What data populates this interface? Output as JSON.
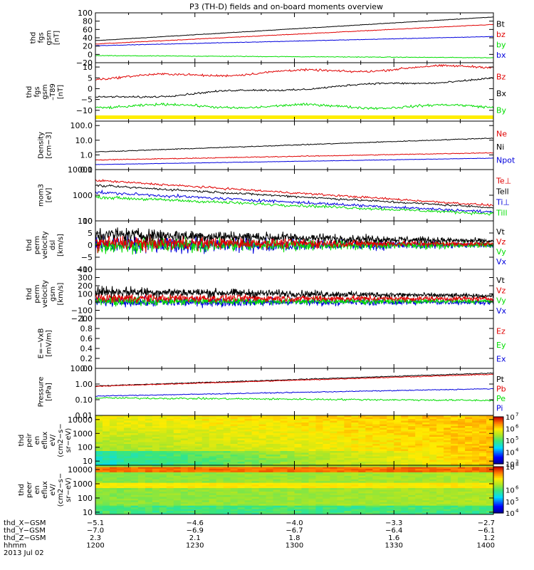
{
  "title": "P3 (TH-D) fields and on-board moments overview",
  "colors": {
    "black": "#000000",
    "red": "#e00000",
    "green": "#00dd00",
    "blue": "#0000dd",
    "yellow": "#ffee00"
  },
  "chart_data": {
    "type": "line",
    "x_time_range_hhmm": [
      "1200",
      "1400"
    ],
    "panels": [
      {
        "id": "fgs-gsm",
        "ylabel_lines": [
          "thd",
          "fgs",
          "gsm",
          "[nT]"
        ],
        "scale": "linear",
        "ylim": [
          -20,
          100
        ],
        "yticks": [
          {
            "v": 100,
            "t": "100"
          },
          {
            "v": 80,
            "t": "80"
          },
          {
            "v": 60,
            "t": "60"
          },
          {
            "v": 40,
            "t": "40"
          },
          {
            "v": 20,
            "t": "20"
          },
          {
            "v": 0,
            "t": "0"
          },
          {
            "v": -20,
            "t": "−20"
          }
        ],
        "series": [
          {
            "name": "Bt",
            "color": "black",
            "start": 33,
            "end": 90,
            "noise": 0.4
          },
          {
            "name": "bz",
            "color": "red",
            "start": 25,
            "end": 72,
            "noise": 0.5
          },
          {
            "name": "by",
            "color": "green",
            "start": -3,
            "end": -8,
            "noise": 0.6
          },
          {
            "name": "bx",
            "color": "blue",
            "start": 21,
            "end": 43,
            "noise": 0.4
          }
        ],
        "legend": [
          "Bt",
          "bz",
          "by",
          "bx"
        ]
      },
      {
        "id": "fgs-dbz",
        "ylabel_lines": [
          "thd",
          "fgs",
          "gsm",
          "–T89",
          "[nT]"
        ],
        "scale": "linear",
        "ylim": [
          -15,
          12
        ],
        "yticks": [
          {
            "v": 10,
            "t": "10"
          },
          {
            "v": 5,
            "t": "5"
          },
          {
            "v": 0,
            "t": "0"
          },
          {
            "v": -5,
            "t": "−5"
          },
          {
            "v": -10,
            "t": "−10"
          }
        ],
        "series": [
          {
            "name": "Bz",
            "color": "red",
            "start": 5,
            "end": 10.5,
            "noise": 0.35,
            "wob": 0.8
          },
          {
            "name": "Bx",
            "color": "black",
            "start": -4.5,
            "end": 4.5,
            "noise": 0.3,
            "wob": 0.6
          },
          {
            "name": "By",
            "color": "green",
            "start": -8,
            "end": -8.3,
            "noise": 0.4,
            "wob": 0.8
          }
        ],
        "legend": [
          "Bz",
          "Bx",
          "By"
        ],
        "yellow_bar": true
      },
      {
        "id": "density",
        "ylabel_lines": [
          "Density",
          "[cm−3]"
        ],
        "scale": "log",
        "ylim": [
          0.1,
          200
        ],
        "yticks": [
          {
            "v": 100,
            "t": "100.0"
          },
          {
            "v": 10,
            "t": "10.0"
          },
          {
            "v": 1,
            "t": "1.0"
          },
          {
            "v": 0.1,
            "t": "0.1"
          }
        ],
        "series": [
          {
            "name": "Ne",
            "color": "red",
            "start": 0.45,
            "end": 1.4,
            "noise": 0.02
          },
          {
            "name": "Ni",
            "color": "black",
            "start": 1.6,
            "end": 14,
            "noise": 0.02
          },
          {
            "name": "Npot",
            "color": "blue",
            "start": 0.22,
            "end": 0.6,
            "noise": 0.01
          }
        ],
        "legend": [
          "Ne",
          "Ni",
          "Npot"
        ]
      },
      {
        "id": "temperature",
        "ylabel_lines": [
          "mom3",
          "[eV]"
        ],
        "scale": "log",
        "ylim": [
          100,
          10000
        ],
        "yticks": [
          {
            "v": 10000,
            "t": "10000"
          },
          {
            "v": 1000,
            "t": "1000"
          },
          {
            "v": 100,
            "t": "100"
          }
        ],
        "series": [
          {
            "name": "Te⊥",
            "color": "red",
            "start": 3800,
            "end": 400,
            "noise": 0.03
          },
          {
            "name": "Tell",
            "color": "black",
            "start": 2400,
            "end": 330,
            "noise": 0.03
          },
          {
            "name": "Ti⊥",
            "color": "blue",
            "start": 1300,
            "end": 220,
            "noise": 0.04
          },
          {
            "name": "Till",
            "color": "green",
            "start": 850,
            "end": 190,
            "noise": 0.04
          }
        ],
        "legend": [
          "Te⊥",
          "Tell",
          "Ti⊥",
          "Till"
        ]
      },
      {
        "id": "perm-velocity-dsl",
        "ylabel_lines": [
          "thd",
          "perm",
          "velocity",
          "dsl",
          "[km/s]"
        ],
        "scale": "linear",
        "ylim": [
          -10,
          10
        ],
        "yticks": [
          {
            "v": 10,
            "t": "10"
          },
          {
            "v": 5,
            "t": "5"
          },
          {
            "v": 0,
            "t": "0"
          },
          {
            "v": -5,
            "t": "−5"
          },
          {
            "v": -10,
            "t": "−10"
          }
        ],
        "series": [
          {
            "name": "Vx",
            "color": "blue",
            "start": 0,
            "end": 0,
            "noise": 2.6,
            "noiseEnd": 0.8
          },
          {
            "name": "Vy",
            "color": "green",
            "start": 0,
            "end": 0,
            "noise": 2.4,
            "noiseEnd": 0.8
          },
          {
            "name": "Vz",
            "color": "red",
            "start": 1,
            "end": 0.5,
            "noise": 2.2,
            "noiseEnd": 0.6
          },
          {
            "name": "Vt",
            "color": "black",
            "start": 4.5,
            "end": 1.6,
            "noise": 2.0,
            "noiseEnd": 0.7
          }
        ],
        "legend": [
          "Vt",
          "Vz",
          "Vy",
          "Vx"
        ]
      },
      {
        "id": "perm-velocity-gsm",
        "ylabel_lines": [
          "thd",
          "perm",
          "velocity",
          "gsm",
          "[km/s]"
        ],
        "scale": "linear",
        "ylim": [
          -200,
          400
        ],
        "yticks": [
          {
            "v": 400,
            "t": "400"
          },
          {
            "v": 300,
            "t": "300"
          },
          {
            "v": 200,
            "t": "200"
          },
          {
            "v": 100,
            "t": "100"
          },
          {
            "v": 0,
            "t": "0"
          },
          {
            "v": -100,
            "t": "−100"
          },
          {
            "v": -200,
            "t": "−200"
          }
        ],
        "series": [
          {
            "name": "Vx",
            "color": "blue",
            "start": 0,
            "end": 0,
            "noise": 45,
            "noiseEnd": 20
          },
          {
            "name": "Vy",
            "color": "green",
            "start": 10,
            "end": 10,
            "noise": 40,
            "noiseEnd": 18
          },
          {
            "name": "Vz",
            "color": "red",
            "start": 50,
            "end": 40,
            "noise": 40,
            "noiseEnd": 18
          },
          {
            "name": "Vt",
            "color": "black",
            "start": 130,
            "end": 75,
            "noise": 45,
            "noiseEnd": 15
          }
        ],
        "legend": [
          "Vt",
          "Vz",
          "Vy",
          "Vx"
        ]
      },
      {
        "id": "efield",
        "ylabel_lines": [
          "E=−VxB",
          "[mV/m]"
        ],
        "scale": "linear",
        "ylim": [
          0,
          1
        ],
        "yticks": [
          {
            "v": 1,
            "t": "1.0"
          },
          {
            "v": 0.8,
            "t": "0.8"
          },
          {
            "v": 0.6,
            "t": "0.6"
          },
          {
            "v": 0.4,
            "t": "0.4"
          },
          {
            "v": 0.2,
            "t": "0.2"
          },
          {
            "v": 0,
            "t": "0.0"
          }
        ],
        "series": [],
        "legend": [
          "Ez",
          "Ey",
          "Ex"
        ]
      },
      {
        "id": "pressure",
        "ylabel_lines": [
          "Pressure",
          "[nPa]"
        ],
        "scale": "log",
        "ylim": [
          0.01,
          10
        ],
        "yticks": [
          {
            "v": 10,
            "t": "10.00"
          },
          {
            "v": 1,
            "t": "1.00"
          },
          {
            "v": 0.1,
            "t": "0.10"
          },
          {
            "v": 0.01,
            "t": "0.01"
          }
        ],
        "series": [
          {
            "name": "Pt",
            "color": "black",
            "start": 0.75,
            "end": 5,
            "noise": 0.02
          },
          {
            "name": "Pb",
            "color": "red",
            "start": 0.72,
            "end": 4.2,
            "noise": 0.02
          },
          {
            "name": "Pe",
            "color": "green",
            "start": 0.13,
            "end": 0.09,
            "noise": 0.04
          },
          {
            "name": "Pi",
            "color": "blue",
            "start": 0.17,
            "end": 0.5,
            "noise": 0.02
          }
        ],
        "legend": [
          "Pt",
          "Pb",
          "Pe",
          "Pi"
        ]
      },
      {
        "id": "peir-spectrogram",
        "type": "heatmap",
        "ylabel_lines": [
          "thd",
          "peir",
          "en",
          "eflux",
          "eV/",
          "(cm2−s−",
          "sr−eV)"
        ],
        "scale": "log",
        "ylim": [
          5,
          20000
        ],
        "yticks": [
          {
            "v": 10000,
            "t": "10000"
          },
          {
            "v": 1000,
            "t": "1000"
          },
          {
            "v": 100,
            "t": "100"
          },
          {
            "v": 10,
            "t": "10"
          }
        ],
        "colorbar": {
          "min_exp": 3,
          "max_exp": 7,
          "labels": [
            {
              "e": 7,
              "t": "10"
            },
            {
              "e": 6,
              "t": "10"
            },
            {
              "e": 5,
              "t": "10"
            },
            {
              "e": 4,
              "t": "10"
            },
            {
              "e": 3,
              "t": "10"
            }
          ]
        }
      },
      {
        "id": "peer-spectrogram",
        "type": "heatmap",
        "ylabel_lines": [
          "thd",
          "peer",
          "en",
          "eflux",
          "eV/",
          "(cm2−s−",
          "sr−eV)"
        ],
        "scale": "log",
        "ylim": [
          7,
          20000
        ],
        "yticks": [
          {
            "v": 10000,
            "t": "10000"
          },
          {
            "v": 1000,
            "t": "1000"
          },
          {
            "v": 100,
            "t": "100"
          },
          {
            "v": 10,
            "t": "10"
          }
        ],
        "colorbar": {
          "min_exp": 4,
          "max_exp": 8,
          "labels": [
            {
              "e": 8,
              "t": "10"
            },
            {
              "e": 6,
              "t": "10"
            },
            {
              "e": 5,
              "t": "10"
            },
            {
              "e": 4,
              "t": "10"
            }
          ]
        }
      }
    ],
    "colorbar_exponents": {
      "peir": [
        "7",
        "6",
        "5",
        "4",
        "3"
      ],
      "peer": [
        "8",
        "6",
        "5",
        "4"
      ]
    },
    "footer_rows": [
      {
        "label": "thd_X−GSM",
        "values": [
          "−5.1",
          "−4.6",
          "−4.0",
          "−3.3",
          "−2.7"
        ]
      },
      {
        "label": "thd_Y−GSM",
        "values": [
          "−7.0",
          "−6.9",
          "−6.7",
          "−6.4",
          "−6.1"
        ]
      },
      {
        "label": "thd_Z−GSM",
        "values": [
          "2.3",
          "2.1",
          "1.8",
          "1.6",
          "1.2"
        ]
      },
      {
        "label": "hhmm",
        "values": [
          "1200",
          "1230",
          "1300",
          "1330",
          "1400"
        ]
      }
    ],
    "date": "2013 Jul 02"
  }
}
